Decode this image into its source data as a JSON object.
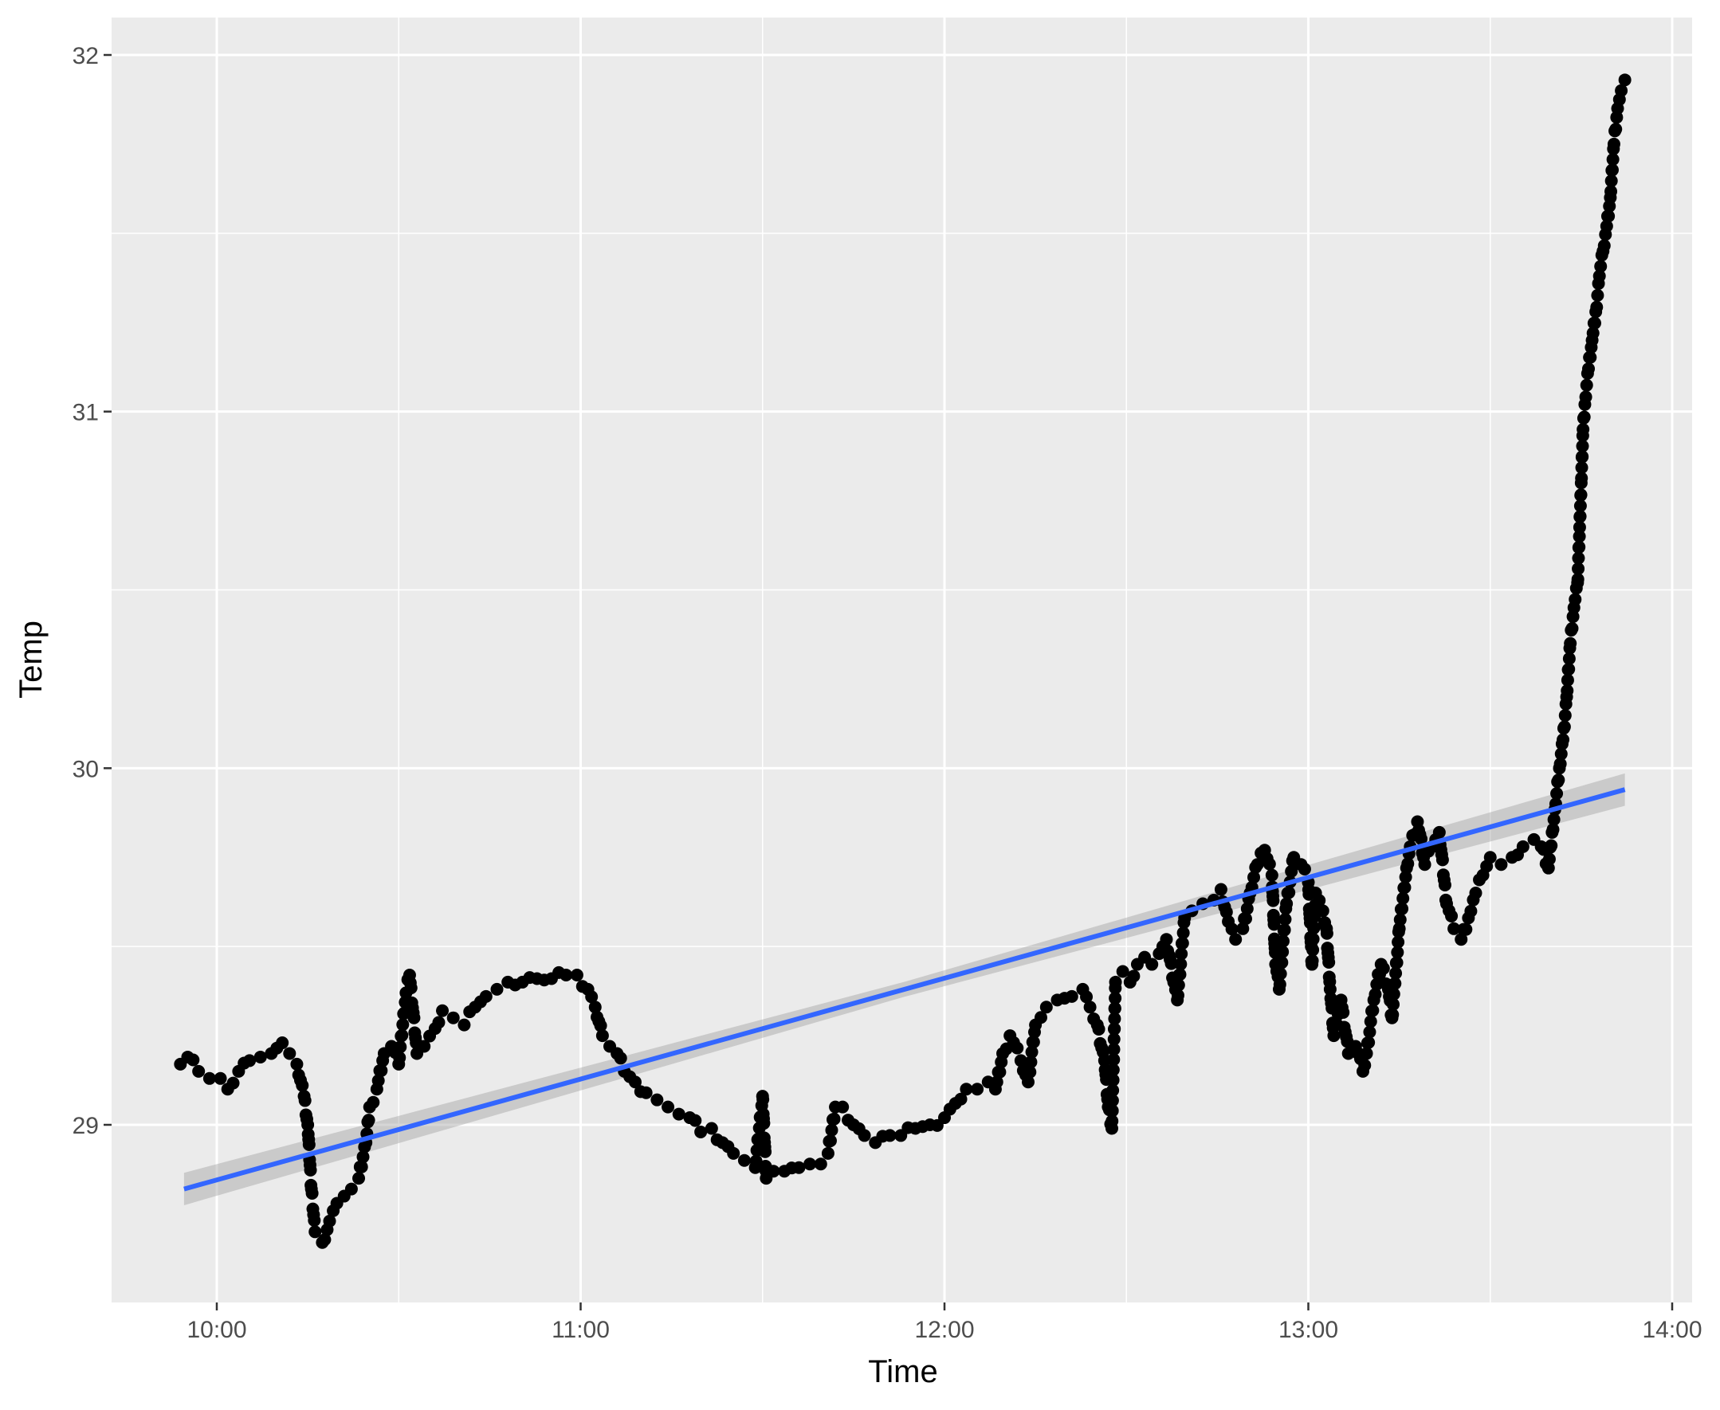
{
  "chart_data": {
    "type": "scatter",
    "title": "",
    "xlabel": "Time",
    "ylabel": "Temp",
    "x_unit": "time of day (hours)",
    "xlim": [
      9.9,
      13.9
    ],
    "ylim": [
      28.5,
      32.1
    ],
    "x_ticks": [
      {
        "value": 10,
        "label": "10:00"
      },
      {
        "value": 11,
        "label": "11:00"
      },
      {
        "value": 12,
        "label": "12:00"
      },
      {
        "value": 13,
        "label": "13:00"
      },
      {
        "value": 14,
        "label": "14:00"
      }
    ],
    "y_ticks": [
      {
        "value": 29,
        "label": "29"
      },
      {
        "value": 30,
        "label": "30"
      },
      {
        "value": 31,
        "label": "31"
      },
      {
        "value": 32,
        "label": "32"
      }
    ],
    "grid": true,
    "legend": "none",
    "series": [
      {
        "kind": "points",
        "color": "#000000",
        "points": [
          [
            9.9,
            29.17
          ],
          [
            9.92,
            29.19
          ],
          [
            9.95,
            29.15
          ],
          [
            9.98,
            29.13
          ],
          [
            10.01,
            29.13
          ],
          [
            10.03,
            29.1
          ],
          [
            10.06,
            29.15
          ],
          [
            10.09,
            29.18
          ],
          [
            10.12,
            29.19
          ],
          [
            10.15,
            29.2
          ],
          [
            10.18,
            29.23
          ],
          [
            10.2,
            29.2
          ],
          [
            10.22,
            29.17
          ],
          [
            10.24,
            29.08
          ],
          [
            10.25,
            29.0
          ],
          [
            10.26,
            28.82
          ],
          [
            10.27,
            28.7
          ],
          [
            10.29,
            28.67
          ],
          [
            10.31,
            28.73
          ],
          [
            10.33,
            28.78
          ],
          [
            10.35,
            28.8
          ],
          [
            10.37,
            28.82
          ],
          [
            10.39,
            28.85
          ],
          [
            10.41,
            28.95
          ],
          [
            10.42,
            29.05
          ],
          [
            10.44,
            29.1
          ],
          [
            10.46,
            29.2
          ],
          [
            10.48,
            29.22
          ],
          [
            10.5,
            29.17
          ],
          [
            10.52,
            29.37
          ],
          [
            10.53,
            29.42
          ],
          [
            10.55,
            29.2
          ],
          [
            10.57,
            29.22
          ],
          [
            10.6,
            29.27
          ],
          [
            10.62,
            29.32
          ],
          [
            10.65,
            29.3
          ],
          [
            10.68,
            29.28
          ],
          [
            10.71,
            29.33
          ],
          [
            10.74,
            29.36
          ],
          [
            10.77,
            29.38
          ],
          [
            10.8,
            29.4
          ],
          [
            10.84,
            29.4
          ],
          [
            10.88,
            29.41
          ],
          [
            10.92,
            29.41
          ],
          [
            10.96,
            29.42
          ],
          [
            10.99,
            29.42
          ],
          [
            11.02,
            29.38
          ],
          [
            11.04,
            29.33
          ],
          [
            11.06,
            29.25
          ],
          [
            11.08,
            29.22
          ],
          [
            11.1,
            29.2
          ],
          [
            11.12,
            29.15
          ],
          [
            11.15,
            29.12
          ],
          [
            11.18,
            29.09
          ],
          [
            11.21,
            29.07
          ],
          [
            11.24,
            29.05
          ],
          [
            11.27,
            29.03
          ],
          [
            11.3,
            29.02
          ],
          [
            11.33,
            28.98
          ],
          [
            11.36,
            28.99
          ],
          [
            11.39,
            28.95
          ],
          [
            11.42,
            28.92
          ],
          [
            11.45,
            28.9
          ],
          [
            11.48,
            28.88
          ],
          [
            11.5,
            29.08
          ],
          [
            11.51,
            28.85
          ],
          [
            11.53,
            28.87
          ],
          [
            11.56,
            28.87
          ],
          [
            11.6,
            28.88
          ],
          [
            11.63,
            28.89
          ],
          [
            11.66,
            28.89
          ],
          [
            11.68,
            28.92
          ],
          [
            11.7,
            29.05
          ],
          [
            11.72,
            29.05
          ],
          [
            11.75,
            29.0
          ],
          [
            11.78,
            28.97
          ],
          [
            11.81,
            28.95
          ],
          [
            11.85,
            28.97
          ],
          [
            11.88,
            28.97
          ],
          [
            11.92,
            28.99
          ],
          [
            11.96,
            29.0
          ],
          [
            12.0,
            29.02
          ],
          [
            12.03,
            29.06
          ],
          [
            12.06,
            29.1
          ],
          [
            12.09,
            29.1
          ],
          [
            12.12,
            29.12
          ],
          [
            12.14,
            29.1
          ],
          [
            12.16,
            29.2
          ],
          [
            12.18,
            29.25
          ],
          [
            12.21,
            29.18
          ],
          [
            12.23,
            29.12
          ],
          [
            12.25,
            29.28
          ],
          [
            12.28,
            29.33
          ],
          [
            12.31,
            29.35
          ],
          [
            12.35,
            29.36
          ],
          [
            12.38,
            29.38
          ],
          [
            12.4,
            29.33
          ],
          [
            12.42,
            29.28
          ],
          [
            12.44,
            29.18
          ],
          [
            12.45,
            29.05
          ],
          [
            12.46,
            28.99
          ],
          [
            12.47,
            29.4
          ],
          [
            12.49,
            29.43
          ],
          [
            12.51,
            29.4
          ],
          [
            12.53,
            29.45
          ],
          [
            12.55,
            29.47
          ],
          [
            12.57,
            29.45
          ],
          [
            12.59,
            29.48
          ],
          [
            12.61,
            29.52
          ],
          [
            12.63,
            29.4
          ],
          [
            12.64,
            29.35
          ],
          [
            12.66,
            29.58
          ],
          [
            12.68,
            29.6
          ],
          [
            12.71,
            29.62
          ],
          [
            12.74,
            29.63
          ],
          [
            12.76,
            29.66
          ],
          [
            12.78,
            29.57
          ],
          [
            12.8,
            29.52
          ],
          [
            12.82,
            29.55
          ],
          [
            12.84,
            29.65
          ],
          [
            12.86,
            29.73
          ],
          [
            12.88,
            29.77
          ],
          [
            12.9,
            29.7
          ],
          [
            12.91,
            29.45
          ],
          [
            12.92,
            29.38
          ],
          [
            12.94,
            29.62
          ],
          [
            12.96,
            29.75
          ],
          [
            12.98,
            29.73
          ],
          [
            13.0,
            29.68
          ],
          [
            13.01,
            29.45
          ],
          [
            13.02,
            29.65
          ],
          [
            13.04,
            29.6
          ],
          [
            13.05,
            29.55
          ],
          [
            13.06,
            29.38
          ],
          [
            13.07,
            29.25
          ],
          [
            13.09,
            29.35
          ],
          [
            13.11,
            29.2
          ],
          [
            13.13,
            29.22
          ],
          [
            13.15,
            29.15
          ],
          [
            13.16,
            29.2
          ],
          [
            13.18,
            29.35
          ],
          [
            13.2,
            29.45
          ],
          [
            13.22,
            29.38
          ],
          [
            13.23,
            29.3
          ],
          [
            13.25,
            29.55
          ],
          [
            13.27,
            29.72
          ],
          [
            13.28,
            29.78
          ],
          [
            13.3,
            29.85
          ],
          [
            13.32,
            29.73
          ],
          [
            13.34,
            29.78
          ],
          [
            13.36,
            29.82
          ],
          [
            13.38,
            29.62
          ],
          [
            13.4,
            29.55
          ],
          [
            13.42,
            29.52
          ],
          [
            13.44,
            29.58
          ],
          [
            13.46,
            29.65
          ],
          [
            13.48,
            29.7
          ],
          [
            13.5,
            29.75
          ],
          [
            13.53,
            29.73
          ],
          [
            13.56,
            29.75
          ],
          [
            13.59,
            29.78
          ],
          [
            13.62,
            29.8
          ],
          [
            13.64,
            29.78
          ],
          [
            13.66,
            29.72
          ],
          [
            13.67,
            29.82
          ],
          [
            13.68,
            29.9
          ],
          [
            13.69,
            30.0
          ],
          [
            13.7,
            30.08
          ],
          [
            13.71,
            30.2
          ],
          [
            13.72,
            30.35
          ],
          [
            13.73,
            30.45
          ],
          [
            13.74,
            30.52
          ],
          [
            13.745,
            30.65
          ],
          [
            13.75,
            30.8
          ],
          [
            13.755,
            30.95
          ],
          [
            13.76,
            31.02
          ],
          [
            13.77,
            31.12
          ],
          [
            13.78,
            31.2
          ],
          [
            13.79,
            31.28
          ],
          [
            13.8,
            31.38
          ],
          [
            13.81,
            31.45
          ],
          [
            13.82,
            31.52
          ],
          [
            13.83,
            31.6
          ],
          [
            13.84,
            31.75
          ],
          [
            13.85,
            31.85
          ],
          [
            13.86,
            31.9
          ],
          [
            13.87,
            31.93
          ]
        ]
      },
      {
        "kind": "linear-fit",
        "color": "#3366FF",
        "band_color": "#999999",
        "start": [
          9.91,
          28.82
        ],
        "end": [
          13.87,
          29.94
        ],
        "band_halfwidth": 0.035
      }
    ]
  }
}
